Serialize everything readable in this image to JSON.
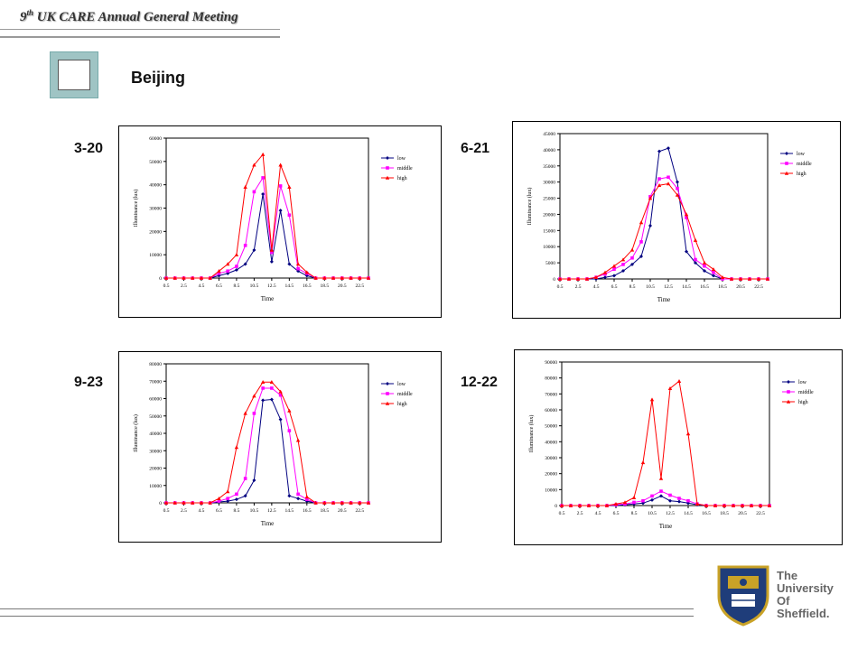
{
  "header": {
    "title_prefix": "9",
    "title_sup": "th",
    "title_rest": " UK CARE Annual General Meeting"
  },
  "city": "Beijing",
  "university": {
    "lines": [
      "The",
      "University",
      "Of",
      "Sheffield."
    ]
  },
  "colors": {
    "low": "#000080",
    "middle": "#ff00ff",
    "high": "#ff0000",
    "icon_fill": "#9fc4c4"
  },
  "chart_data": [
    {
      "type": "line",
      "date_label": "3-20",
      "xlabel": "Time",
      "ylabel": "Illuminance (lux)",
      "ylim": [
        0,
        60000
      ],
      "yticks": [
        0,
        10000,
        20000,
        30000,
        40000,
        50000,
        60000
      ],
      "xticks": [
        "0.5",
        "2.5",
        "4.5",
        "6.5",
        "8.5",
        "10.5",
        "12.5",
        "14.5",
        "16.5",
        "18.5",
        "20.5",
        "22.5"
      ],
      "x": [
        0.5,
        1.5,
        2.5,
        3.5,
        4.5,
        5.5,
        6.5,
        7.5,
        8.5,
        9.5,
        10.5,
        11.5,
        12.5,
        13.5,
        14.5,
        15.5,
        16.5,
        17.5,
        18.5,
        19.5,
        20.5,
        21.5,
        22.5,
        23.5
      ],
      "legend_position": "right",
      "series": [
        {
          "name": "low",
          "values": [
            0,
            0,
            0,
            0,
            0,
            0,
            1000,
            2000,
            3500,
            6000,
            12000,
            36000,
            7000,
            29000,
            6000,
            3000,
            1000,
            0,
            0,
            0,
            0,
            0,
            0,
            0
          ]
        },
        {
          "name": "middle",
          "values": [
            0,
            0,
            0,
            0,
            0,
            0,
            2000,
            3000,
            5000,
            14000,
            37000,
            43000,
            11000,
            39500,
            27000,
            4000,
            2000,
            0,
            0,
            0,
            0,
            0,
            0,
            0
          ]
        },
        {
          "name": "high",
          "values": [
            0,
            0,
            0,
            0,
            0,
            0,
            3000,
            6000,
            10000,
            39000,
            48500,
            53000,
            12000,
            48500,
            39000,
            6000,
            2500,
            0,
            0,
            0,
            0,
            0,
            0,
            0
          ]
        }
      ]
    },
    {
      "type": "line",
      "date_label": "6-21",
      "xlabel": "Time",
      "ylabel": "Illuminance (lux)",
      "ylim": [
        0,
        45000
      ],
      "yticks": [
        0,
        5000,
        10000,
        15000,
        20000,
        25000,
        30000,
        35000,
        40000,
        45000
      ],
      "xticks": [
        "0.5",
        "2.5",
        "4.5",
        "6.5",
        "8.5",
        "10.5",
        "12.5",
        "14.5",
        "16.5",
        "18.5",
        "20.5",
        "22.5"
      ],
      "x": [
        0.5,
        1.5,
        2.5,
        3.5,
        4.5,
        5.5,
        6.5,
        7.5,
        8.5,
        9.5,
        10.5,
        11.5,
        12.5,
        13.5,
        14.5,
        15.5,
        16.5,
        17.5,
        18.5,
        19.5,
        20.5,
        21.5,
        22.5,
        23.5
      ],
      "legend_position": "right",
      "series": [
        {
          "name": "low",
          "values": [
            0,
            0,
            0,
            0,
            0,
            500,
            1000,
            2500,
            4500,
            7000,
            16500,
            39500,
            40500,
            30000,
            8500,
            5000,
            2500,
            1000,
            0,
            0,
            0,
            0,
            0,
            0
          ]
        },
        {
          "name": "middle",
          "values": [
            0,
            0,
            0,
            0,
            500,
            1500,
            3000,
            4500,
            6500,
            11500,
            25500,
            31000,
            31500,
            28000,
            19000,
            6000,
            4000,
            2000,
            0,
            0,
            0,
            0,
            0,
            0
          ]
        },
        {
          "name": "high",
          "values": [
            0,
            0,
            0,
            0,
            500,
            2000,
            4000,
            6000,
            9000,
            17500,
            25000,
            29000,
            29500,
            26000,
            20000,
            12000,
            5000,
            3000,
            500,
            0,
            0,
            0,
            0,
            0
          ]
        }
      ]
    },
    {
      "type": "line",
      "date_label": "9-23",
      "xlabel": "Time",
      "ylabel": "Illuminance (lux)",
      "ylim": [
        0,
        80000
      ],
      "yticks": [
        0,
        10000,
        20000,
        30000,
        40000,
        50000,
        60000,
        70000,
        80000
      ],
      "xticks": [
        "0.5",
        "2.5",
        "4.5",
        "6.5",
        "8.5",
        "10.5",
        "12.5",
        "14.5",
        "16.5",
        "18.5",
        "20.5",
        "22.5"
      ],
      "x": [
        0.5,
        1.5,
        2.5,
        3.5,
        4.5,
        5.5,
        6.5,
        7.5,
        8.5,
        9.5,
        10.5,
        11.5,
        12.5,
        13.5,
        14.5,
        15.5,
        16.5,
        17.5,
        18.5,
        19.5,
        20.5,
        21.5,
        22.5,
        23.5
      ],
      "legend_position": "right",
      "series": [
        {
          "name": "low",
          "values": [
            0,
            0,
            0,
            0,
            0,
            0,
            500,
            1000,
            2000,
            4000,
            13000,
            59000,
            59500,
            48000,
            4000,
            2500,
            1000,
            0,
            0,
            0,
            0,
            0,
            0,
            0
          ]
        },
        {
          "name": "middle",
          "values": [
            0,
            0,
            0,
            0,
            0,
            0,
            1000,
            2500,
            5000,
            14000,
            51500,
            66000,
            66000,
            62000,
            41500,
            5000,
            2000,
            0,
            0,
            0,
            0,
            0,
            0,
            0
          ]
        },
        {
          "name": "high",
          "values": [
            0,
            0,
            0,
            0,
            0,
            0,
            2500,
            6500,
            32000,
            51500,
            61500,
            69500,
            69500,
            64000,
            53000,
            36000,
            3500,
            0,
            0,
            0,
            0,
            0,
            0,
            0
          ]
        }
      ]
    },
    {
      "type": "line",
      "date_label": "12-22",
      "xlabel": "Time",
      "ylabel": "Illuminance (lux)",
      "ylim": [
        0,
        90000
      ],
      "yticks": [
        0,
        10000,
        20000,
        30000,
        40000,
        50000,
        60000,
        70000,
        80000,
        90000
      ],
      "xticks": [
        "0.5",
        "2.5",
        "4.5",
        "6.5",
        "8.5",
        "10.5",
        "12.5",
        "14.5",
        "16.5",
        "18.5",
        "20.5",
        "22.5"
      ],
      "x": [
        0.5,
        1.5,
        2.5,
        3.5,
        4.5,
        5.5,
        6.5,
        7.5,
        8.5,
        9.5,
        10.5,
        11.5,
        12.5,
        13.5,
        14.5,
        15.5,
        16.5,
        17.5,
        18.5,
        19.5,
        20.5,
        21.5,
        22.5,
        23.5
      ],
      "legend_position": "right",
      "series": [
        {
          "name": "low",
          "values": [
            0,
            0,
            0,
            0,
            0,
            0,
            0,
            500,
            1000,
            1500,
            3500,
            6000,
            3000,
            2500,
            1500,
            500,
            0,
            0,
            0,
            0,
            0,
            0,
            0,
            0
          ]
        },
        {
          "name": "middle",
          "values": [
            0,
            0,
            0,
            0,
            0,
            0,
            500,
            1000,
            2000,
            3000,
            6000,
            9000,
            6500,
            4500,
            3000,
            1000,
            0,
            0,
            0,
            0,
            0,
            0,
            0,
            0
          ]
        },
        {
          "name": "high",
          "values": [
            0,
            0,
            0,
            0,
            0,
            0,
            1000,
            2000,
            5000,
            27000,
            66500,
            17000,
            73500,
            78000,
            45000,
            1000,
            0,
            0,
            0,
            0,
            0,
            0,
            0,
            0
          ]
        }
      ]
    }
  ]
}
